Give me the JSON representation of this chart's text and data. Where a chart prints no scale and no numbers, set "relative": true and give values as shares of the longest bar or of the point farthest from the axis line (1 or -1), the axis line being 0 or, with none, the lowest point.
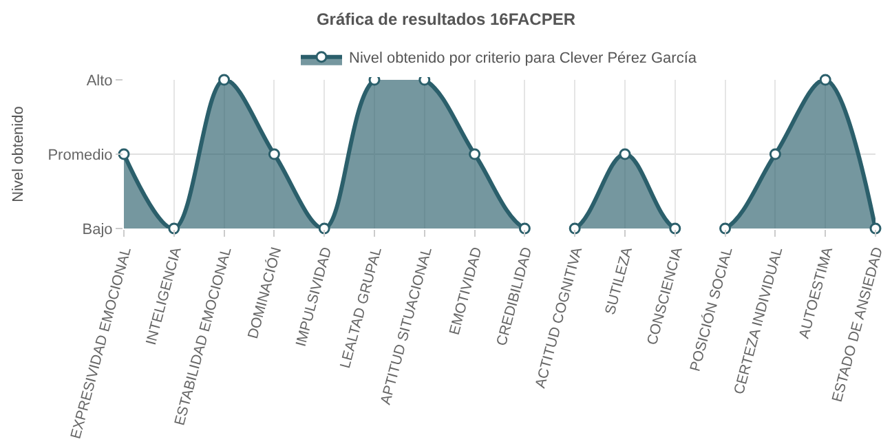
{
  "chart_data": {
    "type": "area",
    "title": "Gráfica de resultados 16FACPER",
    "ylabel": "Nivel obtenido",
    "categories": [
      "EXPRESIVIDAD EMOCIONAL",
      "INTELIGENCIA",
      "ESTABILIDAD EMOCIONAL",
      "DOMINACIÓN",
      "IMPULSIVIDAD",
      "LEALTAD GRUPAL",
      "APTITUD SITUACIONAL",
      "EMOTIVIDAD",
      "CREDIBILIDAD",
      "ACTITUD COGNITIVA",
      "SUTILEZA",
      "CONSCIENCIA",
      "POSICIÓN SOCIAL",
      "CERTEZA INDIVIDUAL",
      "AUTOESTIMA",
      "ESTADO DE ANSIEDAD"
    ],
    "y_categories": [
      "Alto",
      "Promedio",
      "Bajo"
    ],
    "relative": true,
    "series": [
      {
        "name": "Nivel obtenido por criterio para Clever Pérez García",
        "color": "#2b5f6b",
        "values": [
          0.5,
          0,
          1,
          0.5,
          0,
          1,
          1,
          0.5,
          0,
          0,
          0.5,
          0,
          0,
          0.5,
          1,
          0
        ]
      }
    ],
    "ref_lines": [
      {
        "axis": "y",
        "value": 0.5,
        "color": "#e0e0e0"
      }
    ],
    "grid": "x",
    "legend": "top",
    "marker": "circle"
  }
}
